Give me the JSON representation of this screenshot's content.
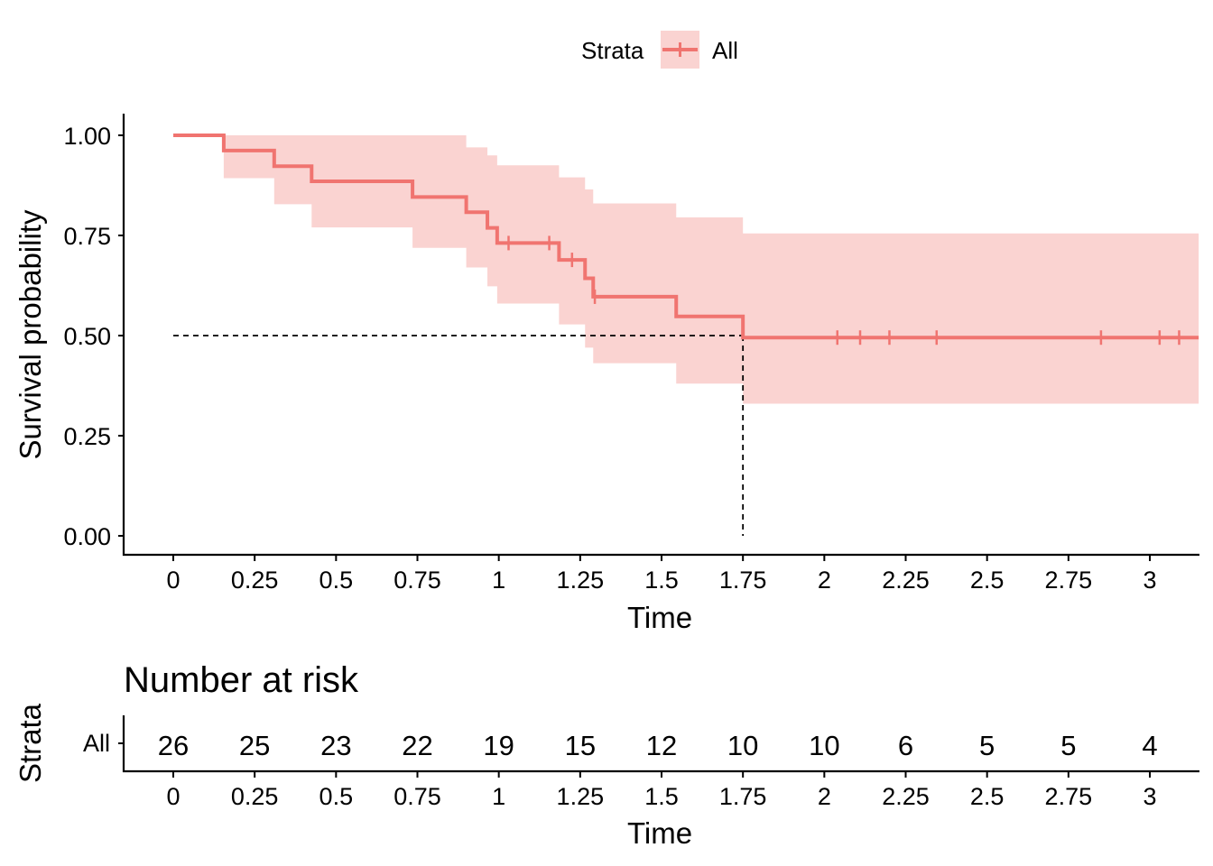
{
  "chart_data": [
    {
      "type": "line",
      "subtype": "kaplan-meier survival curve with confidence band",
      "legend": {
        "title": "Strata",
        "entries": [
          "All"
        ],
        "position": "top"
      },
      "xlabel": "Time",
      "ylabel": "Survival probability",
      "xlim": [
        -0.15,
        3.15
      ],
      "ylim": [
        -0.05,
        1.05
      ],
      "x_ticks": [
        0,
        0.25,
        0.5,
        0.75,
        1,
        1.25,
        1.5,
        1.75,
        2,
        2.25,
        2.5,
        2.75,
        3
      ],
      "x_tick_labels": [
        "0",
        "0.25",
        "0.5",
        "0.75",
        "1",
        "1.25",
        "1.5",
        "1.75",
        "2",
        "2.25",
        "2.5",
        "2.75",
        "3"
      ],
      "y_ticks": [
        0,
        0.25,
        0.5,
        0.75,
        1
      ],
      "y_tick_labels": [
        "0.00",
        "0.25",
        "0.50",
        "0.75",
        "1.00"
      ],
      "series": [
        {
          "name": "All",
          "color": "#f07470",
          "band_color": "#fad3d1",
          "step_x": [
            0,
            0.155,
            0.31,
            0.425,
            0.735,
            0.9,
            0.965,
            0.995,
            1.185,
            1.265,
            1.29,
            1.545,
            1.75,
            3.15
          ],
          "survival": [
            1.0,
            0.962,
            0.923,
            0.885,
            0.846,
            0.808,
            0.769,
            0.731,
            0.689,
            0.643,
            0.597,
            0.548,
            0.495,
            0.495
          ],
          "lower": [
            1.0,
            0.893,
            0.828,
            0.77,
            0.719,
            0.67,
            0.623,
            0.58,
            0.528,
            0.47,
            0.431,
            0.38,
            0.33,
            0.33
          ],
          "upper": [
            1.0,
            1.0,
            1.0,
            1.0,
            1.0,
            0.97,
            0.95,
            0.925,
            0.895,
            0.865,
            0.83,
            0.795,
            0.755,
            0.755
          ],
          "censor_times": [
            1.03,
            1.155,
            1.225,
            1.295,
            2.04,
            2.11,
            2.2,
            2.345,
            2.85,
            3.03,
            3.09
          ]
        }
      ],
      "median_survival": {
        "x": 1.75,
        "y": 0.5
      },
      "grid": false
    },
    {
      "type": "table",
      "title": "Number at risk",
      "ylabel": "Strata",
      "xlabel": "Time",
      "row_labels": [
        "All"
      ],
      "row_label_color": "#f07470",
      "x": [
        0,
        0.25,
        0.5,
        0.75,
        1,
        1.25,
        1.5,
        1.75,
        2,
        2.25,
        2.5,
        2.75,
        3
      ],
      "x_tick_labels": [
        "0",
        "0.25",
        "0.5",
        "0.75",
        "1",
        "1.25",
        "1.5",
        "1.75",
        "2",
        "2.25",
        "2.5",
        "2.75",
        "3"
      ],
      "values": [
        26,
        25,
        23,
        22,
        19,
        15,
        12,
        10,
        10,
        6,
        5,
        5,
        4
      ]
    }
  ]
}
